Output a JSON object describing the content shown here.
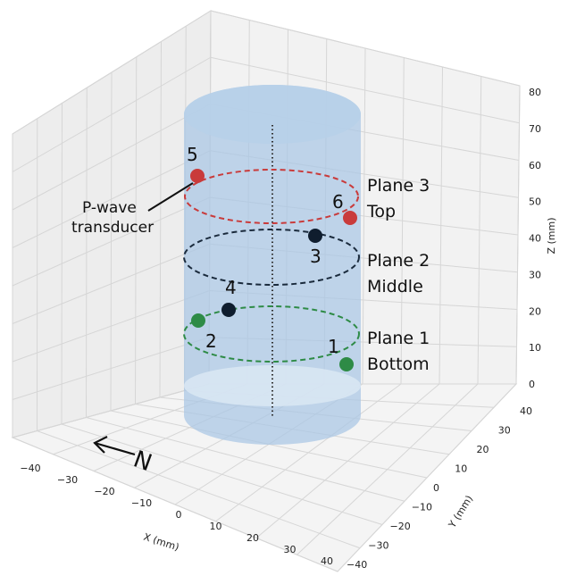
{
  "chart_data": {
    "type": "scatter",
    "projection": "3d",
    "xlabel": "X (mm)",
    "ylabel": "Y (mm)",
    "zlabel": "Z (mm)",
    "x_ticks": [
      "−40",
      "−30",
      "−20",
      "−10",
      "0",
      "10",
      "20",
      "30",
      "40"
    ],
    "y_ticks": [
      "−40",
      "−30",
      "−20",
      "−10",
      "0",
      "10",
      "20",
      "30",
      "40"
    ],
    "z_ticks": [
      "0",
      "10",
      "20",
      "30",
      "40",
      "50",
      "60",
      "70",
      "80"
    ],
    "xlim": [
      -40,
      40
    ],
    "ylim": [
      -40,
      40
    ],
    "zlim": [
      0,
      80
    ],
    "grid": true,
    "cylinder": {
      "color": "#a9c6e4"
    },
    "planes": [
      {
        "line1": "Plane 1",
        "line2": "Bottom",
        "color": "#2e8b46"
      },
      {
        "line1": "Plane 2",
        "line2": "Middle",
        "color": "#1a2a3c"
      },
      {
        "line1": "Plane 3",
        "line2": "Top",
        "color": "#c93b3b"
      }
    ],
    "sensors": [
      {
        "label": "1",
        "color": "#2e8b46"
      },
      {
        "label": "2",
        "color": "#2e8b46"
      },
      {
        "label": "3",
        "color": "#0f1d2e"
      },
      {
        "label": "4",
        "color": "#0f1d2e"
      },
      {
        "label": "5",
        "color": "#c93b3b"
      },
      {
        "label": "6",
        "color": "#c93b3b"
      }
    ],
    "annotation": {
      "line1": "P-wave",
      "line2": "transducer"
    },
    "north_label": "N"
  }
}
